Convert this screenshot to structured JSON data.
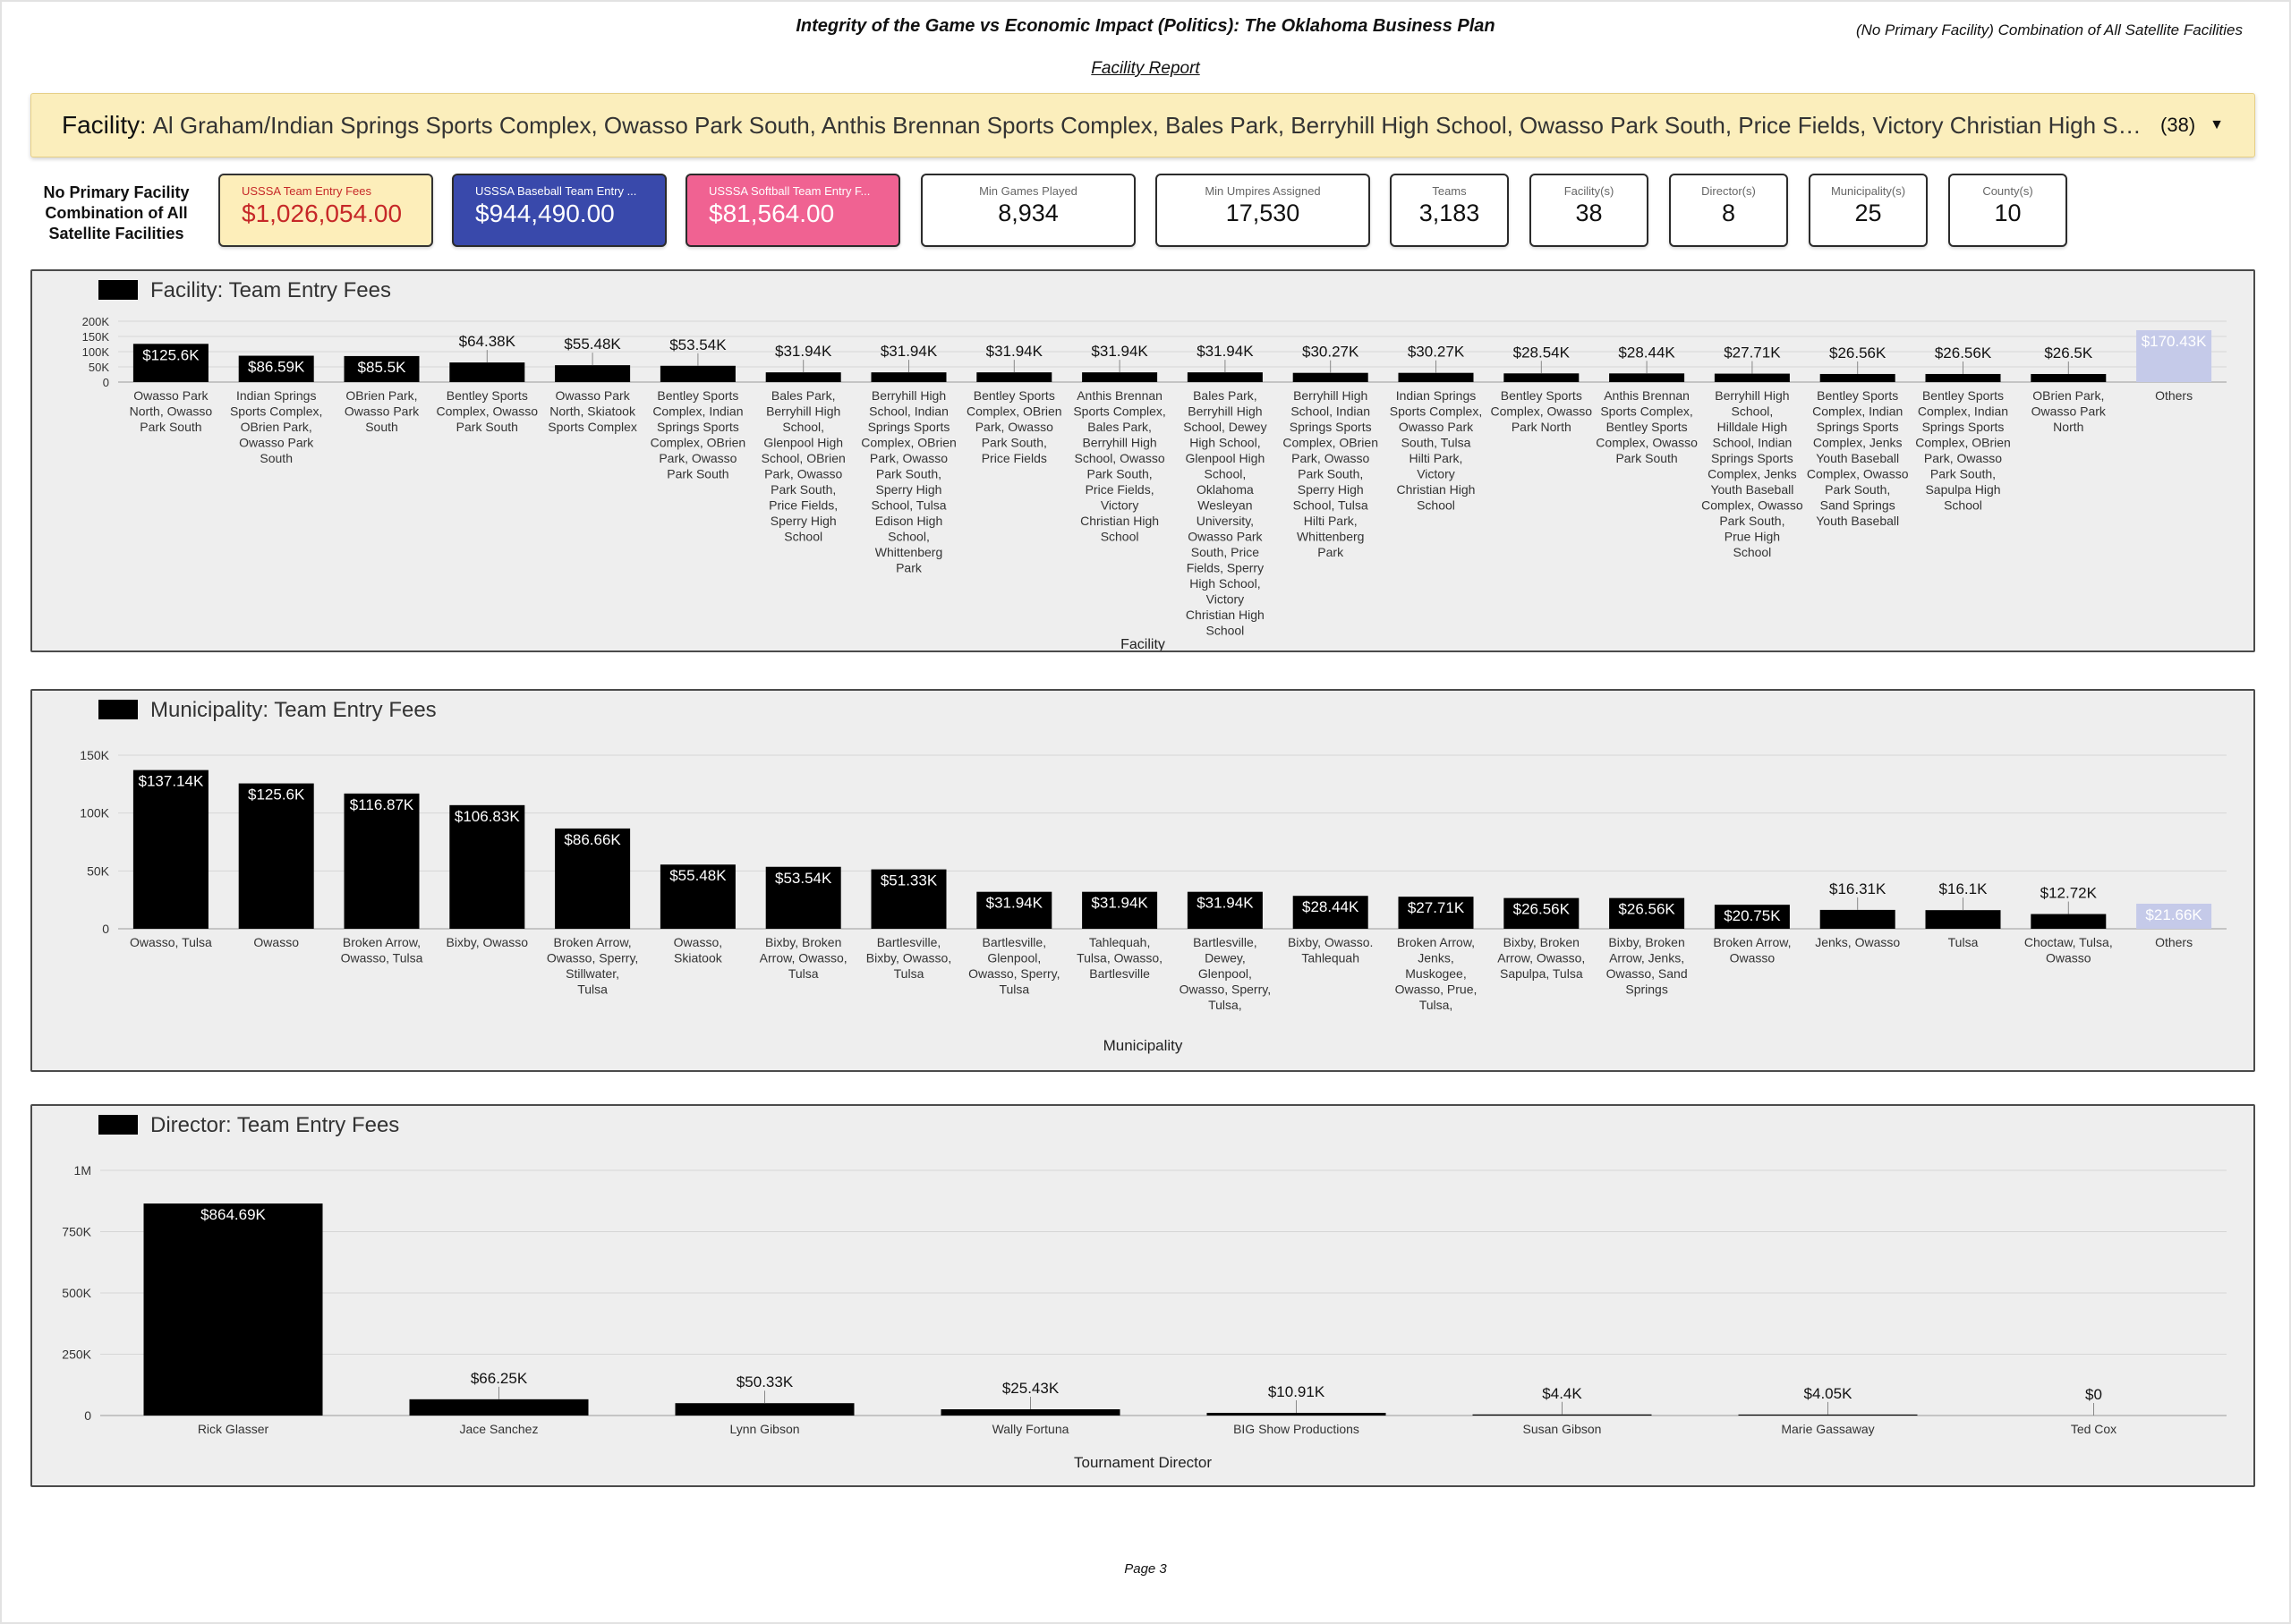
{
  "header": {
    "title": "Integrity of the Game vs Economic Impact (Politics): The Oklahoma Business Plan",
    "subtitle": "Facility Report",
    "right_note": "(No Primary Facility) Combination of All Satellite Facilities"
  },
  "facility_filter": {
    "label": "Facility",
    "value": "Al Graham/Indian Springs Sports Complex, Owasso Park South, Anthis Brennan Sports Complex, Bales Park, Berryhill High School, Owasso Park South, Price Fields, Victory Christian High School, Anthis Brennan Sports Complex, Bales Park",
    "count": "(38)"
  },
  "kpis": {
    "left_caption": "No Primary Facility Combination of All Satellite Facilities",
    "cards": [
      {
        "label": "USSSA Team Entry Fees",
        "value": "$1,026,054.00"
      },
      {
        "label": "USSSA Baseball Team Entry ...",
        "value": "$944,490.00"
      },
      {
        "label": "USSSA Softball Team Entry F...",
        "value": "$81,564.00"
      },
      {
        "label": "Min Games Played",
        "value": "8,934"
      },
      {
        "label": "Min Umpires Assigned",
        "value": "17,530"
      },
      {
        "label": "Teams",
        "value": "3,183"
      },
      {
        "label": "Facility(s)",
        "value": "38"
      },
      {
        "label": "Director(s)",
        "value": "8"
      },
      {
        "label": "Municipality(s)",
        "value": "25"
      },
      {
        "label": "County(s)",
        "value": "10"
      }
    ]
  },
  "colors": {
    "bar": "#000000",
    "others_bar": "#c5cae9",
    "kpi_fees_bg": "#fdeeba",
    "kpi_fees_value": "#c62828",
    "kpi_baseball_bg": "#3949ab",
    "kpi_softball_bg": "#f06292",
    "panel_bg": "#eeeeee"
  },
  "footer": {
    "page": "Page 3"
  },
  "chart_data": [
    {
      "type": "bar",
      "title": "Facility: Team Entry Fees",
      "xlabel": "Facility",
      "ylabel": "",
      "ylim": [
        0,
        200000
      ],
      "ytick_labels": [
        "0",
        "50K",
        "100K",
        "150K",
        "200K"
      ],
      "categories": [
        "Owasso Park North, Owasso Park South",
        "Indian Springs Sports Complex, OBrien Park, Owasso Park South",
        "OBrien Park, Owasso Park South",
        "Bentley Sports Complex, Owasso Park South",
        "Owasso Park North, Skiatook Sports Complex",
        "Bentley Sports Complex, Indian Springs Sports Complex, OBrien Park, Owasso Park South",
        "Bales Park, Berryhill High School, Glenpool High School, OBrien Park, Owasso Park South, Price Fields, Sperry High School",
        "Berryhill High School, Indian Springs Sports Complex, OBrien Park, Owasso Park South, Sperry High School, Tulsa Edison High School, Whittenberg Park",
        "Bentley Sports Complex, OBrien Park, Owasso Park South, Price Fields",
        "Anthis Brennan Sports Complex, Bales Park, Berryhill High School, Owasso Park South, Price Fields, Victory Christian High School",
        "Bales Park, Berryhill High School, Dewey High School, Glenpool High School, Oklahoma Wesleyan University, Owasso Park South, Price Fields, Sperry High School, Victory Christian High School",
        "Berryhill High School, Indian Springs Sports Complex, OBrien Park, Owasso Park South, Sperry High School, Tulsa Hilti Park, Whittenberg Park",
        "Indian Springs Sports Complex, Owasso Park South, Tulsa Hilti Park, Victory Christian High School",
        "Bentley Sports Complex, Owasso Park North",
        "Anthis Brennan Sports Complex, Bentley Sports Complex, Owasso Park South",
        "Berryhill High School, Hilldale High School, Indian Springs Sports Complex, Jenks Youth Baseball Complex, Owasso Park South, Prue High School",
        "Bentley Sports Complex, Indian Springs Sports Complex, Jenks Youth Baseball Complex, Owasso Park South, Sand Springs Youth Baseball",
        "Bentley Sports Complex, Indian Springs Sports Complex, OBrien Park, Owasso Park South, Sapulpa High School",
        "OBrien Park, Owasso Park North",
        "Others"
      ],
      "values": [
        125600,
        86590,
        85500,
        64380,
        55480,
        53540,
        31940,
        31940,
        31940,
        31940,
        31940,
        30270,
        30270,
        28540,
        28440,
        27710,
        26560,
        26560,
        26500,
        170430
      ],
      "data_labels": [
        "$125.6K",
        "$86.59K",
        "$85.5K",
        "$64.38K",
        "$55.48K",
        "$53.54K",
        "$31.94K",
        "$31.94K",
        "$31.94K",
        "$31.94K",
        "$31.94K",
        "$30.27K",
        "$30.27K",
        "$28.54K",
        "$28.44K",
        "$27.71K",
        "$26.56K",
        "$26.56K",
        "$26.5K",
        "$170.43K"
      ]
    },
    {
      "type": "bar",
      "title": "Municipality: Team Entry Fees",
      "xlabel": "Municipality",
      "ylabel": "",
      "ylim": [
        0,
        150000
      ],
      "ytick_labels": [
        "0",
        "50K",
        "100K",
        "150K"
      ],
      "categories": [
        "Owasso, Tulsa",
        "Owasso",
        "Broken Arrow, Owasso, Tulsa",
        "Bixby, Owasso",
        "Broken Arrow, Owasso, Sperry, Stillwater, Tulsa",
        "Owasso, Skiatook",
        "Bixby, Broken Arrow, Owasso, Tulsa",
        "Bartlesville, Bixby, Owasso, Tulsa",
        "Bartlesville, Glenpool, Owasso, Sperry, Tulsa",
        "Tahlequah, Tulsa, Owasso, Bartlesville",
        "Bartlesville, Dewey, Glenpool, Owasso, Sperry, Tulsa,",
        "Bixby, Owasso. Tahlequah",
        "Broken Arrow, Jenks, Muskogee, Owasso, Prue, Tulsa,",
        "Bixby, Broken Arrow, Owasso, Sapulpa, Tulsa",
        "Bixby, Broken Arrow, Jenks, Owasso, Sand Springs",
        "Broken Arrow, Owasso",
        "Jenks, Owasso",
        "Tulsa",
        "Choctaw, Tulsa, Owasso",
        "Others"
      ],
      "values": [
        137140,
        125600,
        116870,
        106830,
        86660,
        55480,
        53540,
        51330,
        31940,
        31940,
        31940,
        28440,
        27710,
        26560,
        26560,
        20750,
        16310,
        16100,
        12720,
        21660
      ],
      "data_labels": [
        "$137.14K",
        "$125.6K",
        "$116.87K",
        "$106.83K",
        "$86.66K",
        "$55.48K",
        "$53.54K",
        "$51.33K",
        "$31.94K",
        "$31.94K",
        "$31.94K",
        "$28.44K",
        "$27.71K",
        "$26.56K",
        "$26.56K",
        "$20.75K",
        "$16.31K",
        "$16.1K",
        "$12.72K",
        "$21.66K"
      ]
    },
    {
      "type": "bar",
      "title": "Director: Team Entry Fees",
      "xlabel": "Tournament Director",
      "ylabel": "",
      "ylim": [
        0,
        1000000
      ],
      "ytick_labels": [
        "0",
        "250K",
        "500K",
        "750K",
        "1M"
      ],
      "categories": [
        "Rick Glasser",
        "Jace Sanchez",
        "Lynn Gibson",
        "Wally Fortuna",
        "BIG Show Productions",
        "Susan Gibson",
        "Marie Gassaway",
        "Ted Cox"
      ],
      "values": [
        864690,
        66250,
        50330,
        25430,
        10910,
        4400,
        4050,
        0
      ],
      "data_labels": [
        "$864.69K",
        "$66.25K",
        "$50.33K",
        "$25.43K",
        "$10.91K",
        "$4.4K",
        "$4.05K",
        "$0"
      ]
    }
  ]
}
